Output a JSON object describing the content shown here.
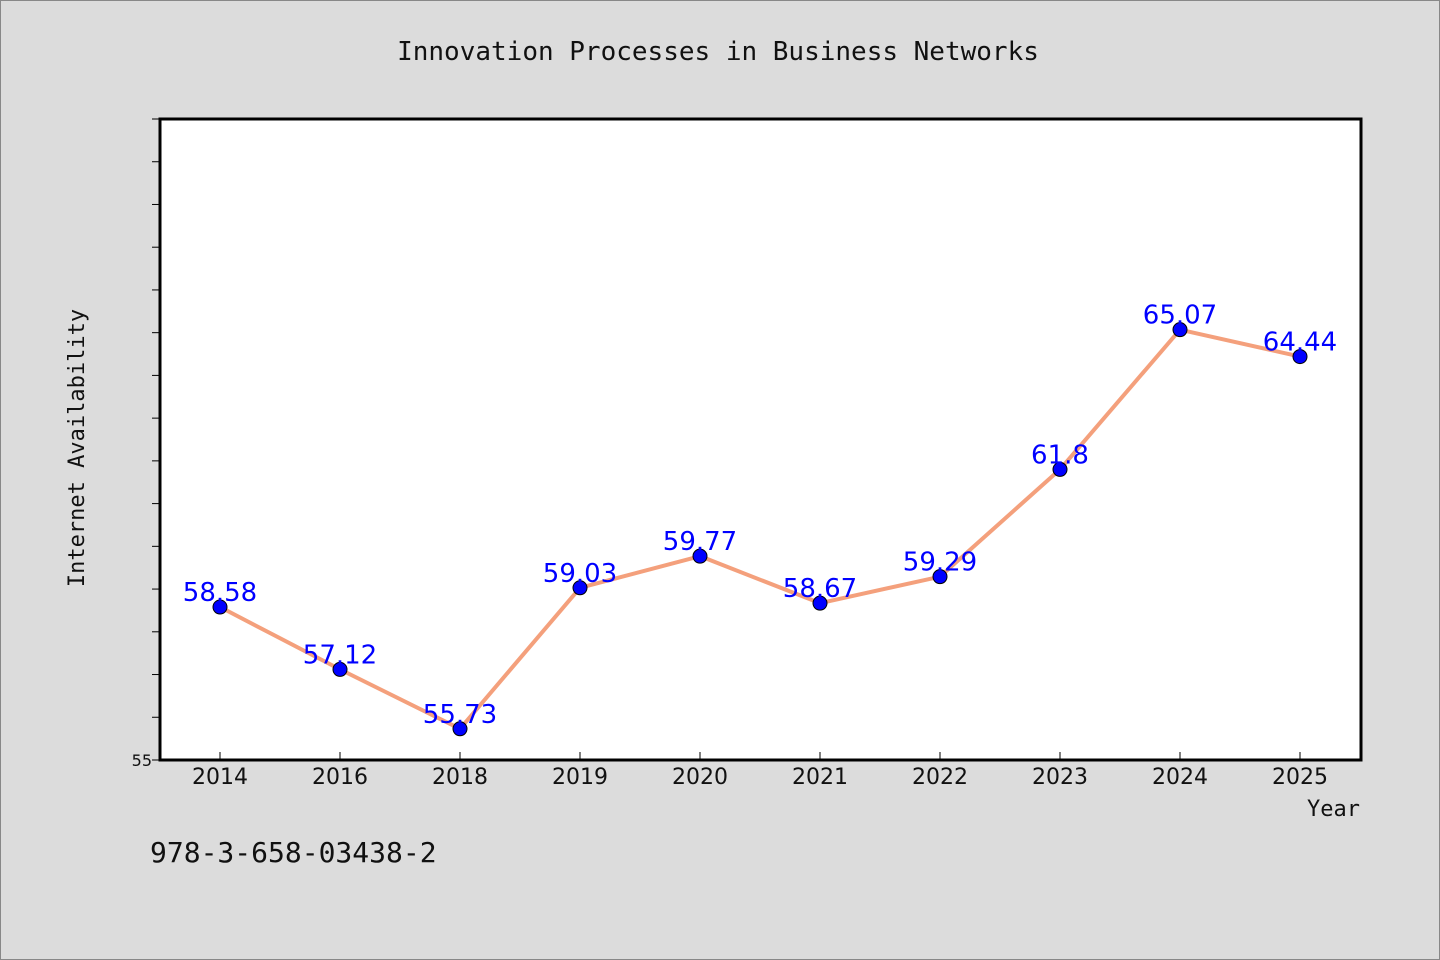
{
  "chart_data": {
    "type": "line",
    "title": "Innovation Processes in Business Networks",
    "xlabel": "Year",
    "ylabel": "Internet Availability",
    "categories": [
      "2014",
      "2016",
      "2018",
      "2019",
      "2020",
      "2021",
      "2022",
      "2023",
      "2024",
      "2025"
    ],
    "series": [
      {
        "values": [
          58.58,
          57.12,
          55.73,
          59.03,
          59.77,
          58.67,
          59.29,
          61.8,
          65.07,
          64.44
        ]
      }
    ],
    "data_labels": [
      "58.58",
      "57.12",
      "55.73",
      "59.03",
      "59.77",
      "58.67",
      "59.29",
      "61.8",
      "65.07",
      "64.44"
    ],
    "ylim": [
      55,
      70
    ],
    "yticks": [
      55
    ],
    "ytick_labels": [
      "55"
    ],
    "grid": false,
    "line_color": "#f4a07c",
    "marker_color": "#0000ff",
    "label_color": "#0000ff"
  },
  "footer": {
    "isbn": "978-3-658-03438-2"
  }
}
